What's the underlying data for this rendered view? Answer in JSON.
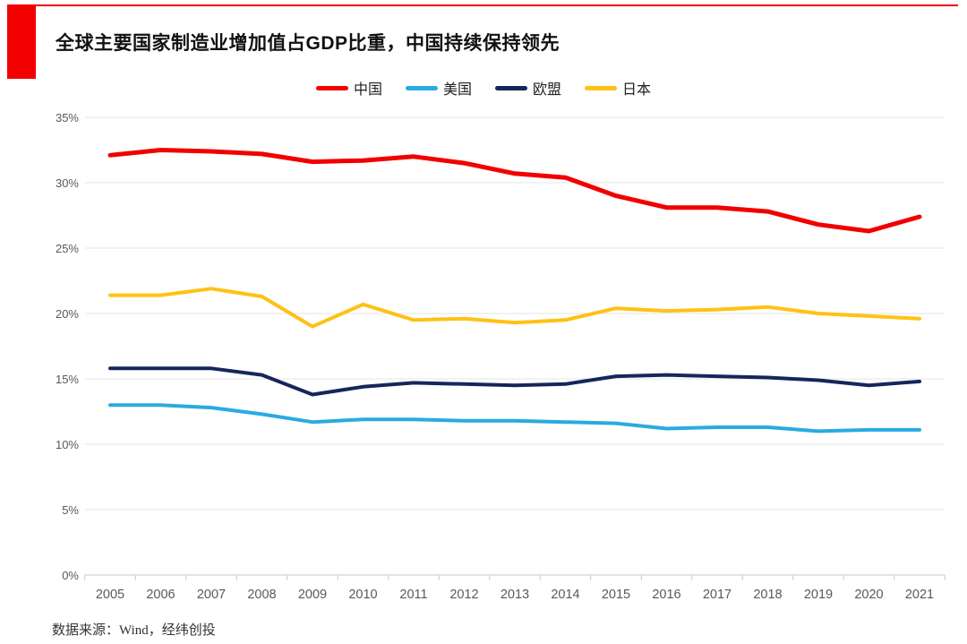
{
  "header": {
    "title": "全球主要国家制造业增加值占GDP比重，中国持续保持领先",
    "accent_color": "#f20000"
  },
  "footer": {
    "source": "数据来源：Wind，经纬创投"
  },
  "colors": {
    "accent_red": "#f20000",
    "grid_line": "#e4e4e4",
    "axis_line": "#c9c9c9",
    "tick_label": "#595959"
  },
  "chart_data": {
    "type": "line",
    "title": "全球主要国家制造业增加值占GDP比重，中国持续保持领先",
    "xlabel": "",
    "ylabel": "",
    "x": [
      "2005",
      "2006",
      "2007",
      "2008",
      "2009",
      "2010",
      "2011",
      "2012",
      "2013",
      "2014",
      "2015",
      "2016",
      "2017",
      "2018",
      "2019",
      "2020",
      "2021"
    ],
    "ylim": [
      0,
      35
    ],
    "ytick_step": 5,
    "ytick_labels": [
      "0%",
      "5%",
      "10%",
      "15%",
      "20%",
      "25%",
      "30%",
      "35%"
    ],
    "grid": true,
    "legend_position": "top-center",
    "series": [
      {
        "name": "中国",
        "color": "#f20000",
        "stroke_width": 5,
        "values": [
          32.1,
          32.5,
          32.4,
          32.2,
          31.6,
          31.7,
          32.0,
          31.5,
          30.7,
          30.4,
          29.0,
          28.1,
          28.1,
          27.8,
          26.8,
          26.3,
          27.4
        ]
      },
      {
        "name": "美国",
        "color": "#29abe2",
        "stroke_width": 4,
        "values": [
          13.0,
          13.0,
          12.8,
          12.3,
          11.7,
          11.9,
          11.9,
          11.8,
          11.8,
          11.7,
          11.6,
          11.2,
          11.3,
          11.3,
          11.0,
          11.1,
          11.1
        ]
      },
      {
        "name": "欧盟",
        "color": "#16265c",
        "stroke_width": 4,
        "values": [
          15.8,
          15.8,
          15.8,
          15.3,
          13.8,
          14.4,
          14.7,
          14.6,
          14.5,
          14.6,
          15.2,
          15.3,
          15.2,
          15.1,
          14.9,
          14.5,
          14.8
        ]
      },
      {
        "name": "日本",
        "color": "#ffc114",
        "stroke_width": 4,
        "values": [
          21.4,
          21.4,
          21.9,
          21.3,
          19.0,
          20.7,
          19.5,
          19.6,
          19.3,
          19.5,
          20.4,
          20.2,
          20.3,
          20.5,
          20.0,
          19.8,
          19.6
        ]
      }
    ]
  }
}
